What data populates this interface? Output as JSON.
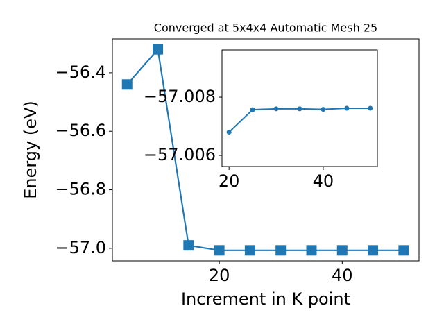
{
  "chart_data": [
    {
      "type": "line",
      "title": "Converged at 5x4x4 Automatic Mesh 25",
      "xlabel": "Increment in K point",
      "ylabel": "Energy (eV)",
      "x": [
        5,
        10,
        15,
        20,
        25,
        30,
        35,
        40,
        45,
        50
      ],
      "series": [
        {
          "name": "Energy",
          "color": "#1f77b4",
          "marker": "square",
          "values": [
            -56.44,
            -56.32,
            -56.99,
            -57.007,
            -57.007,
            -57.007,
            -57.007,
            -57.007,
            -57.007,
            -57.007
          ]
        }
      ],
      "xlim": [
        2.6,
        52.5
      ],
      "xticks": [
        20,
        40
      ],
      "ylim": [
        -57.043,
        -56.284
      ],
      "yticks": [
        {
          "value": -56.4,
          "label": "−56.4"
        },
        {
          "value": -56.6,
          "label": "−56.6"
        },
        {
          "value": -56.8,
          "label": "−56.8"
        },
        {
          "value": -57.0,
          "label": "−57.0"
        }
      ]
    },
    {
      "type": "line",
      "x": [
        20,
        25,
        30,
        35,
        40,
        45,
        50
      ],
      "series": [
        {
          "name": "Energy",
          "color": "#1f77b4",
          "marker": "circle",
          "values": [
            -57.0068,
            -57.00757,
            -57.0076,
            -57.0076,
            -57.00758,
            -57.00762,
            -57.00762
          ]
        }
      ],
      "xlim": [
        18.5,
        51.5
      ],
      "xticks": [
        20,
        40
      ],
      "ylim": [
        -57.00562,
        -57.00962
      ],
      "yticks": [
        {
          "value": -57.008,
          "label": "−57.008"
        },
        {
          "value": -57.006,
          "label": "−57.006"
        }
      ]
    }
  ]
}
